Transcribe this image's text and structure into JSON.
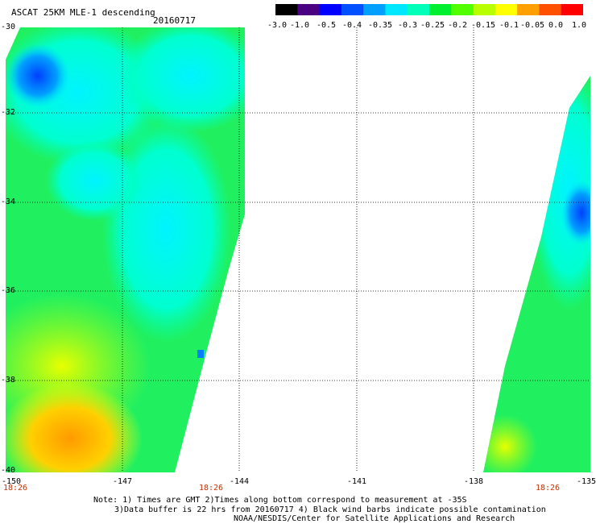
{
  "header": {
    "title": "ASCAT 25KM MLE-1 descending",
    "date": "20160717"
  },
  "colorbar": {
    "labels": [
      "-3.0",
      "-1.0",
      "-0.5",
      "-0.4",
      "-0.35",
      "-0.3",
      "-0.25",
      "-0.2",
      "-0.15",
      "-0.1",
      "-0.05",
      "0.0",
      "1.0"
    ],
    "colors": [
      "#000000",
      "#4b0082",
      "#0000ff",
      "#0050ff",
      "#00a0ff",
      "#00e8ff",
      "#00ffb8",
      "#00f030",
      "#50ff00",
      "#b8ff00",
      "#ffff00",
      "#ffa000",
      "#ff5000",
      "#ff0000"
    ]
  },
  "map": {
    "lon_range": [
      -150,
      -135
    ],
    "lat_range": [
      -40,
      -30
    ],
    "lat_labels": [
      "-30",
      "-32",
      "-34",
      "-36",
      "-38",
      "-40"
    ],
    "lon_labels": [
      "-150",
      "-147",
      "-144",
      "-141",
      "-138",
      "-135"
    ],
    "pass_times": [
      "18:26",
      "18:26",
      "18:26"
    ]
  },
  "footer": {
    "line1": "Note: 1) Times are GMT 2)Times along bottom correspond to measurement at -35S",
    "line2": "3)Data buffer is 22 hrs from 20160717 4) Black wind barbs indicate possible contamination",
    "line3": "NOAA/NESDIS/Center for Satellite Applications and Research"
  }
}
